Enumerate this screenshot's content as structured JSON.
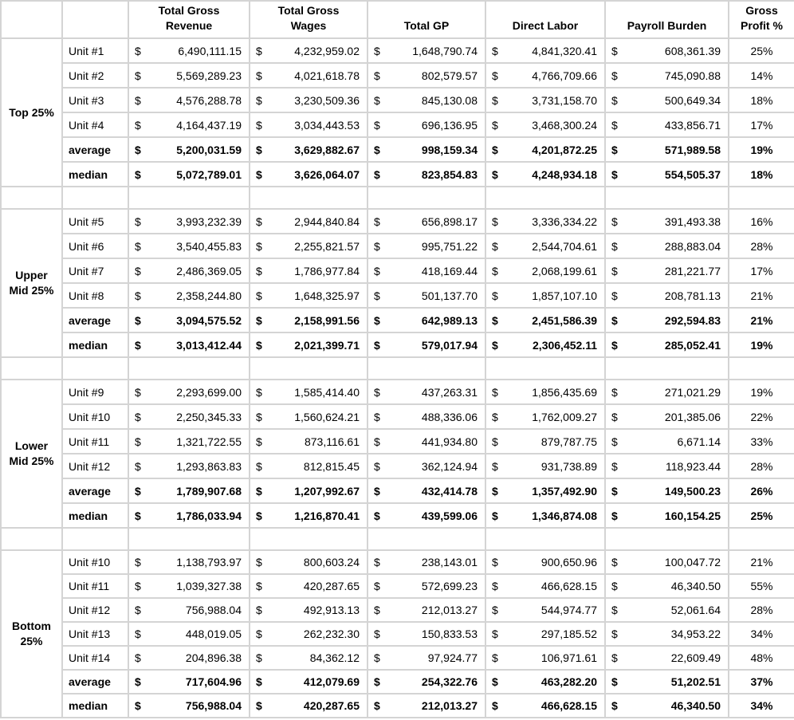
{
  "colors": {
    "border": "#d4d4d4",
    "text": "#000000",
    "background": "#ffffff"
  },
  "currency_symbol": "$",
  "header": {
    "columns": [
      "",
      "",
      "Total Gross\nRevenue",
      "Total Gross\nWages",
      "Total GP",
      "Direct Labor",
      "Payroll Burden",
      "Gross\nProfit %"
    ]
  },
  "sections": [
    {
      "label": "Top 25%",
      "rows": [
        {
          "label": "Unit #1",
          "bold": false,
          "revenue": "6,490,111.15",
          "wages": "4,232,959.02",
          "gp": "1,648,790.74",
          "direct_labor": "4,841,320.41",
          "payroll_burden": "608,361.39",
          "gp_pct": "25%"
        },
        {
          "label": "Unit #2",
          "bold": false,
          "revenue": "5,569,289.23",
          "wages": "4,021,618.78",
          "gp": "802,579.57",
          "direct_labor": "4,766,709.66",
          "payroll_burden": "745,090.88",
          "gp_pct": "14%"
        },
        {
          "label": "Unit #3",
          "bold": false,
          "revenue": "4,576,288.78",
          "wages": "3,230,509.36",
          "gp": "845,130.08",
          "direct_labor": "3,731,158.70",
          "payroll_burden": "500,649.34",
          "gp_pct": "18%"
        },
        {
          "label": "Unit #4",
          "bold": false,
          "revenue": "4,164,437.19",
          "wages": "3,034,443.53",
          "gp": "696,136.95",
          "direct_labor": "3,468,300.24",
          "payroll_burden": "433,856.71",
          "gp_pct": "17%"
        },
        {
          "label": "average",
          "bold": true,
          "revenue": "5,200,031.59",
          "wages": "3,629,882.67",
          "gp": "998,159.34",
          "direct_labor": "4,201,872.25",
          "payroll_burden": "571,989.58",
          "gp_pct": "19%"
        },
        {
          "label": "median",
          "bold": true,
          "revenue": "5,072,789.01",
          "wages": "3,626,064.07",
          "gp": "823,854.83",
          "direct_labor": "4,248,934.18",
          "payroll_burden": "554,505.37",
          "gp_pct": "18%"
        }
      ]
    },
    {
      "label": "Upper\nMid 25%",
      "rows": [
        {
          "label": "Unit #5",
          "bold": false,
          "revenue": "3,993,232.39",
          "wages": "2,944,840.84",
          "gp": "656,898.17",
          "direct_labor": "3,336,334.22",
          "payroll_burden": "391,493.38",
          "gp_pct": "16%"
        },
        {
          "label": "Unit #6",
          "bold": false,
          "revenue": "3,540,455.83",
          "wages": "2,255,821.57",
          "gp": "995,751.22",
          "direct_labor": "2,544,704.61",
          "payroll_burden": "288,883.04",
          "gp_pct": "28%"
        },
        {
          "label": "Unit #7",
          "bold": false,
          "revenue": "2,486,369.05",
          "wages": "1,786,977.84",
          "gp": "418,169.44",
          "direct_labor": "2,068,199.61",
          "payroll_burden": "281,221.77",
          "gp_pct": "17%"
        },
        {
          "label": "Unit #8",
          "bold": false,
          "revenue": "2,358,244.80",
          "wages": "1,648,325.97",
          "gp": "501,137.70",
          "direct_labor": "1,857,107.10",
          "payroll_burden": "208,781.13",
          "gp_pct": "21%"
        },
        {
          "label": "average",
          "bold": true,
          "revenue": "3,094,575.52",
          "wages": "2,158,991.56",
          "gp": "642,989.13",
          "direct_labor": "2,451,586.39",
          "payroll_burden": "292,594.83",
          "gp_pct": "21%"
        },
        {
          "label": "median",
          "bold": true,
          "revenue": "3,013,412.44",
          "wages": "2,021,399.71",
          "gp": "579,017.94",
          "direct_labor": "2,306,452.11",
          "payroll_burden": "285,052.41",
          "gp_pct": "19%"
        }
      ]
    },
    {
      "label": "Lower\nMid 25%",
      "rows": [
        {
          "label": "Unit #9",
          "bold": false,
          "revenue": "2,293,699.00",
          "wages": "1,585,414.40",
          "gp": "437,263.31",
          "direct_labor": "1,856,435.69",
          "payroll_burden": "271,021.29",
          "gp_pct": "19%"
        },
        {
          "label": "Unit #10",
          "bold": false,
          "revenue": "2,250,345.33",
          "wages": "1,560,624.21",
          "gp": "488,336.06",
          "direct_labor": "1,762,009.27",
          "payroll_burden": "201,385.06",
          "gp_pct": "22%"
        },
        {
          "label": "Unit #11",
          "bold": false,
          "revenue": "1,321,722.55",
          "wages": "873,116.61",
          "gp": "441,934.80",
          "direct_labor": "879,787.75",
          "payroll_burden": "6,671.14",
          "gp_pct": "33%"
        },
        {
          "label": "Unit #12",
          "bold": false,
          "revenue": "1,293,863.83",
          "wages": "812,815.45",
          "gp": "362,124.94",
          "direct_labor": "931,738.89",
          "payroll_burden": "118,923.44",
          "gp_pct": "28%"
        },
        {
          "label": "average",
          "bold": true,
          "revenue": "1,789,907.68",
          "wages": "1,207,992.67",
          "gp": "432,414.78",
          "direct_labor": "1,357,492.90",
          "payroll_burden": "149,500.23",
          "gp_pct": "26%"
        },
        {
          "label": "median",
          "bold": true,
          "revenue": "1,786,033.94",
          "wages": "1,216,870.41",
          "gp": "439,599.06",
          "direct_labor": "1,346,874.08",
          "payroll_burden": "160,154.25",
          "gp_pct": "25%"
        }
      ]
    },
    {
      "label": "Bottom\n25%",
      "rows": [
        {
          "label": "Unit #10",
          "bold": false,
          "revenue": "1,138,793.97",
          "wages": "800,603.24",
          "gp": "238,143.01",
          "direct_labor": "900,650.96",
          "payroll_burden": "100,047.72",
          "gp_pct": "21%"
        },
        {
          "label": "Unit #11",
          "bold": false,
          "revenue": "1,039,327.38",
          "wages": "420,287.65",
          "gp": "572,699.23",
          "direct_labor": "466,628.15",
          "payroll_burden": "46,340.50",
          "gp_pct": "55%"
        },
        {
          "label": "Unit #12",
          "bold": false,
          "revenue": "756,988.04",
          "wages": "492,913.13",
          "gp": "212,013.27",
          "direct_labor": "544,974.77",
          "payroll_burden": "52,061.64",
          "gp_pct": "28%"
        },
        {
          "label": "Unit #13",
          "bold": false,
          "revenue": "448,019.05",
          "wages": "262,232.30",
          "gp": "150,833.53",
          "direct_labor": "297,185.52",
          "payroll_burden": "34,953.22",
          "gp_pct": "34%"
        },
        {
          "label": "Unit #14",
          "bold": false,
          "revenue": "204,896.38",
          "wages": "84,362.12",
          "gp": "97,924.77",
          "direct_labor": "106,971.61",
          "payroll_burden": "22,609.49",
          "gp_pct": "48%"
        },
        {
          "label": "average",
          "bold": true,
          "revenue": "717,604.96",
          "wages": "412,079.69",
          "gp": "254,322.76",
          "direct_labor": "463,282.20",
          "payroll_burden": "51,202.51",
          "gp_pct": "37%"
        },
        {
          "label": "median",
          "bold": true,
          "revenue": "756,988.04",
          "wages": "420,287.65",
          "gp": "212,013.27",
          "direct_labor": "466,628.15",
          "payroll_burden": "46,340.50",
          "gp_pct": "34%"
        }
      ]
    }
  ]
}
